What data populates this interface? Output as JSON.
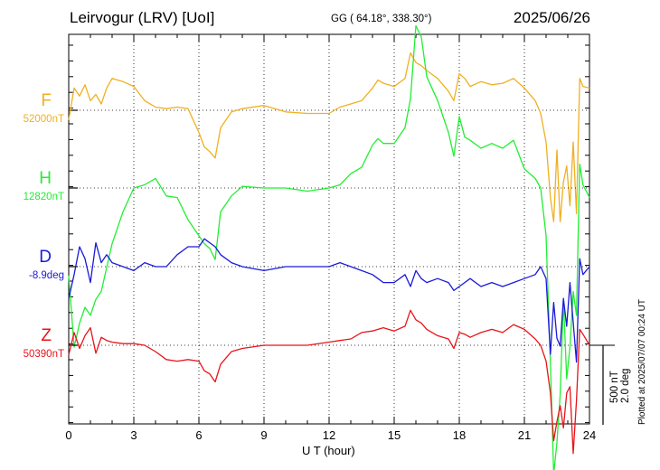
{
  "header": {
    "title": "Leirvogur (LRV)  [UoI]",
    "coords": "GG ( 64.18°, 338.30°)",
    "date": "2025/06/26"
  },
  "footer": {
    "plotted": "Plotted at 2025/07/07 00:24 UT"
  },
  "scale": {
    "nt": "500 nT",
    "deg": "2.0 deg"
  },
  "chart_data": {
    "type": "line",
    "title": "",
    "xlabel": "U T (hour)",
    "ylabel": "",
    "xlim": [
      0,
      24
    ],
    "x_ticks": [
      "0",
      "3",
      "6",
      "9",
      "12",
      "15",
      "18",
      "21",
      "24"
    ],
    "grid": true,
    "series": [
      {
        "name": "F",
        "baseline_label": "52000nT",
        "color": "#f0b020",
        "baseline_nT": 52000,
        "x": [
          0,
          0.25,
          0.5,
          0.75,
          1.0,
          1.25,
          1.5,
          1.75,
          2.0,
          2.5,
          3.0,
          3.5,
          4.0,
          4.5,
          5.0,
          5.5,
          6.0,
          6.25,
          6.5,
          6.75,
          7.0,
          7.5,
          8.0,
          9.0,
          10.0,
          11.0,
          12.0,
          12.5,
          13.0,
          13.5,
          14.0,
          14.25,
          14.5,
          15.0,
          15.5,
          15.75,
          16.0,
          16.25,
          16.5,
          17.0,
          17.5,
          17.75,
          18.0,
          18.25,
          18.5,
          19.0,
          19.5,
          20.0,
          20.5,
          21.0,
          21.5,
          21.75,
          22.0,
          22.2,
          22.35,
          22.5,
          22.65,
          22.8,
          22.95,
          23.1,
          23.25,
          23.4,
          23.55,
          23.7,
          24.0
        ],
        "values": [
          -60,
          140,
          90,
          160,
          60,
          100,
          40,
          140,
          200,
          180,
          150,
          60,
          20,
          10,
          20,
          10,
          -140,
          -230,
          -260,
          -300,
          -110,
          -10,
          10,
          30,
          -10,
          -20,
          -20,
          20,
          40,
          60,
          140,
          190,
          170,
          150,
          200,
          360,
          300,
          280,
          250,
          200,
          120,
          60,
          230,
          200,
          150,
          180,
          160,
          170,
          200,
          140,
          60,
          -20,
          -200,
          -550,
          -700,
          -250,
          -700,
          -450,
          -350,
          -600,
          -200,
          -650,
          200,
          150,
          140
        ]
      },
      {
        "name": "H",
        "baseline_label": "12820nT",
        "color": "#22ee33",
        "baseline_nT": 12820,
        "x": [
          0,
          0.25,
          0.5,
          0.75,
          1.0,
          1.25,
          1.5,
          1.75,
          2.0,
          2.5,
          3.0,
          3.5,
          4.0,
          4.5,
          5.0,
          5.5,
          6.0,
          6.25,
          6.5,
          6.75,
          7.0,
          7.5,
          8.0,
          9.0,
          10.0,
          11.0,
          12.0,
          12.5,
          13.0,
          13.5,
          14.0,
          14.25,
          14.5,
          15.0,
          15.5,
          15.75,
          16.0,
          16.25,
          16.5,
          17.0,
          17.5,
          17.75,
          18.0,
          18.25,
          18.5,
          19.0,
          19.5,
          20.0,
          20.5,
          21.0,
          21.5,
          21.75,
          22.0,
          22.2,
          22.35,
          22.5,
          22.65,
          22.8,
          22.95,
          23.1,
          23.25,
          23.4,
          23.55,
          23.7,
          24.0
        ],
        "values": [
          -550,
          -1000,
          -850,
          -750,
          -800,
          -700,
          -650,
          -500,
          -350,
          -150,
          0,
          20,
          60,
          -50,
          -60,
          -200,
          -300,
          -350,
          -380,
          -450,
          -150,
          -50,
          10,
          0,
          0,
          -20,
          0,
          20,
          90,
          130,
          270,
          310,
          280,
          280,
          380,
          560,
          1020,
          950,
          700,
          550,
          350,
          200,
          450,
          320,
          300,
          250,
          280,
          250,
          300,
          120,
          60,
          0,
          -300,
          -1100,
          -1800,
          -1600,
          -1300,
          -700,
          -1200,
          -1000,
          -650,
          -800,
          150,
          20,
          -60
        ]
      },
      {
        "name": "D",
        "baseline_label": "-8.9deg",
        "color": "#1a1ad8",
        "baseline_nT": null,
        "x": [
          0,
          0.25,
          0.5,
          0.75,
          1.0,
          1.25,
          1.5,
          1.75,
          2.0,
          2.5,
          3.0,
          3.5,
          4.0,
          4.5,
          5.0,
          5.5,
          6.0,
          6.25,
          6.5,
          6.75,
          7.0,
          7.5,
          8.0,
          9.0,
          10.0,
          11.0,
          12.0,
          12.5,
          13.0,
          13.5,
          14.0,
          14.25,
          14.5,
          15.0,
          15.5,
          15.75,
          16.0,
          16.25,
          16.5,
          17.0,
          17.5,
          17.75,
          18.0,
          18.25,
          18.5,
          19.0,
          19.5,
          20.0,
          20.5,
          21.0,
          21.5,
          21.75,
          22.0,
          22.2,
          22.35,
          22.5,
          22.65,
          22.8,
          22.95,
          23.1,
          23.25,
          23.4,
          23.55,
          23.7,
          24.0
        ],
        "values": [
          -0.8,
          -0.2,
          0.5,
          0.2,
          -0.4,
          0.6,
          0.1,
          0.3,
          0.1,
          0.0,
          -0.1,
          0.1,
          0.0,
          0.0,
          0.3,
          0.5,
          0.5,
          0.7,
          0.6,
          0.5,
          0.3,
          0.1,
          0.0,
          -0.1,
          0.0,
          0.0,
          0.0,
          0.1,
          0.0,
          -0.1,
          -0.2,
          -0.3,
          -0.4,
          -0.4,
          -0.2,
          -0.5,
          -0.1,
          -0.3,
          -0.4,
          -0.3,
          -0.4,
          -0.6,
          -0.5,
          -0.4,
          -0.3,
          -0.5,
          -0.4,
          -0.5,
          -0.4,
          -0.3,
          -0.2,
          0.0,
          -0.3,
          -2.2,
          -0.9,
          -1.8,
          -2.0,
          -0.8,
          -1.5,
          -0.4,
          -1.4,
          -2.4,
          0.2,
          -0.2,
          0.0
        ]
      },
      {
        "name": "Z",
        "baseline_label": "50390nT",
        "color": "#e8141a",
        "baseline_nT": 50390,
        "x": [
          0,
          0.25,
          0.5,
          0.75,
          1.0,
          1.25,
          1.5,
          1.75,
          2.0,
          2.5,
          3.0,
          3.5,
          4.0,
          4.5,
          5.0,
          5.5,
          6.0,
          6.25,
          6.5,
          6.75,
          7.0,
          7.5,
          8.0,
          9.0,
          10.0,
          11.0,
          12.0,
          12.5,
          13.0,
          13.5,
          14.0,
          14.25,
          14.5,
          15.0,
          15.5,
          15.75,
          16.0,
          16.25,
          16.5,
          17.0,
          17.5,
          17.75,
          18.0,
          18.25,
          18.5,
          19.0,
          19.5,
          20.0,
          20.5,
          21.0,
          21.5,
          21.75,
          22.0,
          22.2,
          22.35,
          22.5,
          22.65,
          22.8,
          22.95,
          23.1,
          23.25,
          23.4,
          23.55,
          23.7,
          24.0
        ],
        "values": [
          -60,
          80,
          -20,
          60,
          110,
          -50,
          50,
          30,
          20,
          10,
          10,
          0,
          -40,
          -90,
          -100,
          -90,
          -100,
          -160,
          -180,
          -230,
          -120,
          -40,
          -20,
          0,
          0,
          0,
          20,
          30,
          40,
          80,
          90,
          100,
          110,
          90,
          120,
          220,
          160,
          140,
          100,
          60,
          40,
          -20,
          80,
          70,
          50,
          80,
          100,
          80,
          130,
          100,
          40,
          0,
          -100,
          -300,
          -600,
          -480,
          -380,
          -520,
          -300,
          -260,
          -680,
          -350,
          100,
          70,
          0
        ]
      }
    ]
  }
}
